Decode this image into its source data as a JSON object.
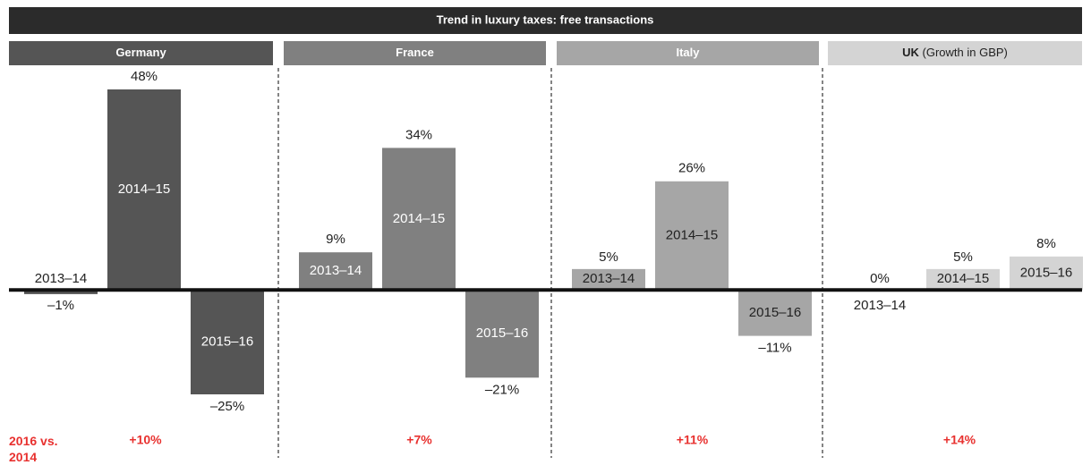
{
  "header": {
    "title": "Trend in luxury taxes: free transactions"
  },
  "summary_label": "2016 vs. 2014",
  "chart_data": [
    {
      "type": "bar",
      "title": "Germany",
      "categories": [
        "2013–14",
        "2014–15",
        "2015–16"
      ],
      "values": [
        -1,
        48,
        -25
      ],
      "value_labels": [
        "–1%",
        "48%",
        "–25%"
      ],
      "color": "#555555",
      "annotation": "+10%"
    },
    {
      "type": "bar",
      "title": "France",
      "categories": [
        "2013–14",
        "2014–15",
        "2015–16"
      ],
      "values": [
        9,
        34,
        -21
      ],
      "value_labels": [
        "9%",
        "34%",
        "–21%"
      ],
      "color": "#808080",
      "annotation": "+7%"
    },
    {
      "type": "bar",
      "title": "Italy",
      "categories": [
        "2013–14",
        "2014–15",
        "2015–16"
      ],
      "values": [
        5,
        26,
        -11
      ],
      "value_labels": [
        "5%",
        "26%",
        "–11%"
      ],
      "color": "#a6a6a6",
      "annotation": "+11%"
    },
    {
      "type": "bar",
      "title": "UK",
      "subtitle": "(Growth in GBP)",
      "categories": [
        "2013–14",
        "2014–15",
        "2015–16"
      ],
      "values": [
        0,
        5,
        8
      ],
      "value_labels": [
        "0%",
        "5%",
        "8%"
      ],
      "color": "#d4d4d4",
      "annotation": "+14%"
    }
  ]
}
